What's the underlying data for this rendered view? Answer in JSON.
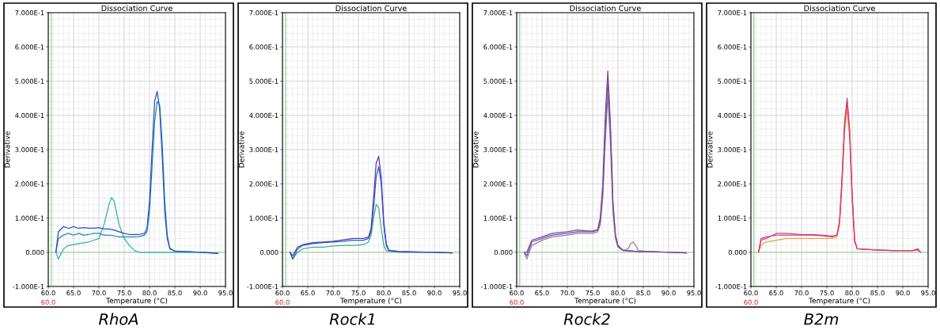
{
  "chart_data": [
    {
      "type": "line",
      "title": "Dissociation Curve",
      "subtitle": "RhoA",
      "xlabel": "Temperature (°C)",
      "ylabel": "Derivative",
      "xlim": [
        60,
        95
      ],
      "ylim": [
        -0.1,
        0.7
      ],
      "xticks": [
        {
          "value": 60,
          "label": "60.0"
        },
        {
          "value": 65,
          "label": "65.0"
        },
        {
          "value": 70,
          "label": "70.0"
        },
        {
          "value": 75,
          "label": "75.0"
        },
        {
          "value": 80,
          "label": "80.0"
        },
        {
          "value": 85,
          "label": "85.0"
        },
        {
          "value": 90,
          "label": "90.0"
        },
        {
          "value": 95,
          "label": "95.0"
        }
      ],
      "yticks": [
        {
          "value": -0.1,
          "label": "-1.000E-1"
        },
        {
          "value": 0,
          "label": "0.000"
        },
        {
          "value": 0.1,
          "label": "1.000E-1"
        },
        {
          "value": 0.2,
          "label": "2.000E-1"
        },
        {
          "value": 0.3,
          "label": "3.000E-1"
        },
        {
          "value": 0.4,
          "label": "4.000E-1"
        },
        {
          "value": 0.5,
          "label": "5.000E-1"
        },
        {
          "value": 0.6,
          "label": "6.000E-1"
        },
        {
          "value": 0.7,
          "label": "7.000E-1"
        }
      ],
      "grid": true,
      "annotations": [
        "60.0"
      ],
      "ref_lines": [
        {
          "axis": "y",
          "value": 0,
          "color": "#7fd07f"
        },
        {
          "axis": "x",
          "value": 60.6,
          "color": "#7fd07f"
        }
      ],
      "series": [
        {
          "color": "#2bb3a8",
          "x": [
            61.5,
            62,
            63,
            64,
            66,
            68,
            70,
            71,
            72,
            72.5,
            73,
            74,
            75,
            76,
            77,
            78,
            80,
            85,
            90,
            93.5
          ],
          "values": [
            0,
            -0.02,
            0.01,
            0.02,
            0.025,
            0.03,
            0.04,
            0.08,
            0.14,
            0.16,
            0.15,
            0.08,
            0.04,
            0.02,
            0.005,
            0,
            0,
            0,
            0,
            -0.003
          ]
        },
        {
          "color": "#1f8bb5",
          "x": [
            61.5,
            62,
            63,
            64,
            65,
            66,
            67,
            68,
            69,
            70,
            71,
            72,
            73,
            74,
            75,
            76,
            77,
            78,
            79,
            79.5,
            80,
            80.5,
            81,
            81.5,
            82,
            82.5,
            83,
            83.5,
            84,
            85,
            87,
            90,
            93.5
          ],
          "values": [
            0,
            0.04,
            0.05,
            0.055,
            0.05,
            0.055,
            0.05,
            0.052,
            0.055,
            0.055,
            0.05,
            0.05,
            0.048,
            0.045,
            0.045,
            0.045,
            0.045,
            0.046,
            0.05,
            0.06,
            0.12,
            0.25,
            0.38,
            0.44,
            0.43,
            0.32,
            0.15,
            0.05,
            0.012,
            0.003,
            0.002,
            0,
            -0.003
          ]
        },
        {
          "color": "#2a4fc0",
          "x": [
            61.5,
            62,
            63,
            64,
            65,
            66,
            67,
            68,
            69,
            70,
            71,
            72,
            73,
            74,
            75,
            76,
            77,
            78,
            79,
            79.5,
            80,
            80.5,
            81,
            81.5,
            82,
            82.5,
            83,
            83.5,
            84,
            85,
            87,
            90,
            93.5
          ],
          "values": [
            0,
            0.06,
            0.075,
            0.07,
            0.075,
            0.07,
            0.072,
            0.07,
            0.07,
            0.072,
            0.068,
            0.068,
            0.065,
            0.06,
            0.055,
            0.052,
            0.052,
            0.052,
            0.055,
            0.07,
            0.15,
            0.3,
            0.44,
            0.47,
            0.42,
            0.28,
            0.12,
            0.04,
            0.01,
            0.003,
            0.002,
            0,
            -0.003
          ]
        }
      ]
    },
    {
      "type": "line",
      "title": "Dissociation Curve",
      "subtitle": "Rock1",
      "xlabel": "Temperature (°C)",
      "ylabel": "Derivative",
      "xlim": [
        60,
        95
      ],
      "ylim": [
        -0.1,
        0.7
      ],
      "xticks": [
        {
          "value": 60,
          "label": "60.0"
        },
        {
          "value": 65,
          "label": "65.0"
        },
        {
          "value": 70,
          "label": "70.0"
        },
        {
          "value": 75,
          "label": "75.0"
        },
        {
          "value": 80,
          "label": "80.0"
        },
        {
          "value": 85,
          "label": "85.0"
        },
        {
          "value": 90,
          "label": "90.0"
        },
        {
          "value": 95,
          "label": "95.0"
        }
      ],
      "yticks": [
        {
          "value": -0.1,
          "label": "-1.000E-1"
        },
        {
          "value": 0,
          "label": "0.000"
        },
        {
          "value": 0.1,
          "label": "1.000E-1"
        },
        {
          "value": 0.2,
          "label": "2.000E-1"
        },
        {
          "value": 0.3,
          "label": "3.000E-1"
        },
        {
          "value": 0.4,
          "label": "4.000E-1"
        },
        {
          "value": 0.5,
          "label": "5.000E-1"
        },
        {
          "value": 0.6,
          "label": "6.000E-1"
        },
        {
          "value": 0.7,
          "label": "7.000E-1"
        }
      ],
      "grid": true,
      "annotations": [
        "60.0"
      ],
      "ref_lines": [
        {
          "axis": "y",
          "value": 0,
          "color": "#7fd07f"
        },
        {
          "axis": "x",
          "value": 60.6,
          "color": "#7fd07f"
        }
      ],
      "series": [
        {
          "color": "#3fae8f",
          "x": [
            61.5,
            62,
            63,
            64,
            66,
            68,
            70,
            72,
            74,
            76,
            77,
            77.5,
            78,
            78.5,
            79,
            79.5,
            80,
            80.5,
            81,
            83,
            86,
            90,
            93.5
          ],
          "values": [
            0,
            -0.02,
            0,
            0.01,
            0.015,
            0.015,
            0.018,
            0.02,
            0.02,
            0.022,
            0.03,
            0.05,
            0.1,
            0.14,
            0.13,
            0.07,
            0.02,
            0.005,
            0.002,
            0,
            0,
            0,
            -0.002
          ]
        },
        {
          "color": "#2c5fb8",
          "x": [
            61.5,
            62,
            63,
            64,
            66,
            68,
            70,
            72,
            74,
            76,
            77,
            77.5,
            78,
            78.5,
            79,
            79.5,
            80,
            80.5,
            81,
            83,
            86,
            90,
            93.5
          ],
          "values": [
            0,
            -0.02,
            0.01,
            0.02,
            0.025,
            0.028,
            0.03,
            0.032,
            0.035,
            0.035,
            0.04,
            0.06,
            0.13,
            0.22,
            0.25,
            0.2,
            0.08,
            0.02,
            0.005,
            0.002,
            0.001,
            0,
            -0.002
          ]
        },
        {
          "color": "#4b3cc4",
          "x": [
            61.5,
            62,
            63,
            64,
            66,
            68,
            70,
            72,
            74,
            76,
            77,
            77.5,
            78,
            78.5,
            79,
            79.5,
            80,
            80.5,
            81,
            83,
            86,
            90,
            93.5
          ],
          "values": [
            0,
            -0.01,
            0.015,
            0.022,
            0.028,
            0.03,
            0.032,
            0.036,
            0.04,
            0.04,
            0.045,
            0.07,
            0.16,
            0.26,
            0.28,
            0.22,
            0.09,
            0.025,
            0.006,
            0.002,
            0.001,
            0,
            -0.002
          ]
        }
      ]
    },
    {
      "type": "line",
      "title": "Dissociation Curve",
      "subtitle": "Rock2",
      "xlabel": "Temperature (°C)",
      "ylabel": "Derivative",
      "xlim": [
        60,
        95
      ],
      "ylim": [
        -0.1,
        0.7
      ],
      "xticks": [
        {
          "value": 60,
          "label": "60.0"
        },
        {
          "value": 65,
          "label": "65.0"
        },
        {
          "value": 70,
          "label": "70.0"
        },
        {
          "value": 75,
          "label": "75.0"
        },
        {
          "value": 80,
          "label": "80.0"
        },
        {
          "value": 85,
          "label": "85.0"
        },
        {
          "value": 90,
          "label": "90.0"
        },
        {
          "value": 95,
          "label": "95.0"
        }
      ],
      "yticks": [
        {
          "value": -0.1,
          "label": "-1.000E-1"
        },
        {
          "value": 0,
          "label": "0.000"
        },
        {
          "value": 0.1,
          "label": "1.000E-1"
        },
        {
          "value": 0.2,
          "label": "2.000E-1"
        },
        {
          "value": 0.3,
          "label": "3.000E-1"
        },
        {
          "value": 0.4,
          "label": "4.000E-1"
        },
        {
          "value": 0.5,
          "label": "5.000E-1"
        },
        {
          "value": 0.6,
          "label": "6.000E-1"
        },
        {
          "value": 0.7,
          "label": "7.000E-1"
        }
      ],
      "grid": true,
      "annotations": [
        "60.0"
      ],
      "ref_lines": [
        {
          "axis": "y",
          "value": 0,
          "color": "#7fd07f"
        },
        {
          "axis": "x",
          "value": 60.6,
          "color": "#7fd07f"
        }
      ],
      "series": [
        {
          "color": "#8a8a8a",
          "x": [
            61.5,
            62,
            63,
            65,
            67,
            70,
            72,
            74,
            75,
            76,
            76.5,
            77,
            77.5,
            78,
            78.5,
            79,
            79.5,
            80,
            81,
            82,
            82.5,
            83,
            83.5,
            84,
            86,
            90,
            93.5
          ],
          "values": [
            0,
            -0.02,
            0.02,
            0.035,
            0.045,
            0.05,
            0.055,
            0.055,
            0.055,
            0.06,
            0.08,
            0.16,
            0.32,
            0.46,
            0.32,
            0.12,
            0.04,
            0.015,
            0.005,
            0.01,
            0.025,
            0.03,
            0.02,
            0.005,
            0.002,
            0,
            -0.002
          ]
        },
        {
          "color": "#6a4fb5",
          "x": [
            61.5,
            62,
            63,
            65,
            67,
            70,
            72,
            74,
            75,
            76,
            76.5,
            77,
            77.5,
            78,
            78.5,
            79,
            79.5,
            80,
            81,
            84,
            86,
            90,
            93.5
          ],
          "values": [
            0,
            -0.01,
            0.03,
            0.04,
            0.05,
            0.055,
            0.06,
            0.06,
            0.06,
            0.065,
            0.09,
            0.18,
            0.36,
            0.5,
            0.36,
            0.14,
            0.05,
            0.018,
            0.005,
            0.002,
            0.002,
            0,
            -0.002
          ]
        },
        {
          "color": "#8a3f9e",
          "x": [
            61.5,
            62,
            63,
            65,
            67,
            70,
            72,
            74,
            75,
            76,
            76.5,
            77,
            77.5,
            78,
            78.5,
            79,
            79.5,
            80,
            81,
            84,
            86,
            90,
            93.5
          ],
          "values": [
            0,
            0,
            0.035,
            0.045,
            0.055,
            0.06,
            0.065,
            0.062,
            0.062,
            0.066,
            0.1,
            0.2,
            0.4,
            0.53,
            0.38,
            0.15,
            0.05,
            0.02,
            0.006,
            0.002,
            0.002,
            0,
            -0.002
          ]
        }
      ]
    },
    {
      "type": "line",
      "title": "Dissociation Curve",
      "subtitle": "B2m",
      "xlabel": "Temperature (°C)",
      "ylabel": "Derivative",
      "xlim": [
        60,
        95
      ],
      "ylim": [
        -0.1,
        0.7
      ],
      "xticks": [
        {
          "value": 60,
          "label": "60.0"
        },
        {
          "value": 65,
          "label": "65.0"
        },
        {
          "value": 70,
          "label": "70.0"
        },
        {
          "value": 75,
          "label": "75.0"
        },
        {
          "value": 80,
          "label": "80.0"
        },
        {
          "value": 85,
          "label": "85.0"
        },
        {
          "value": 90,
          "label": "90.0"
        },
        {
          "value": 95,
          "label": "95.0"
        }
      ],
      "yticks": [
        {
          "value": -0.1,
          "label": "-1.000E-1"
        },
        {
          "value": 0,
          "label": "0.000"
        },
        {
          "value": 0.1,
          "label": "1.000E-1"
        },
        {
          "value": 0.2,
          "label": "2.000E-1"
        },
        {
          "value": 0.3,
          "label": "3.000E-1"
        },
        {
          "value": 0.4,
          "label": "4.000E-1"
        },
        {
          "value": 0.5,
          "label": "5.000E-1"
        },
        {
          "value": 0.6,
          "label": "6.000E-1"
        },
        {
          "value": 0.7,
          "label": "7.000E-1"
        }
      ],
      "grid": true,
      "annotations": [
        "60.0"
      ],
      "ref_lines": [
        {
          "axis": "y",
          "value": 0,
          "color": "#7fd07f"
        },
        {
          "axis": "x",
          "value": 60.6,
          "color": "#7fd07f"
        }
      ],
      "series": [
        {
          "color": "#f0a040",
          "x": [
            61.5,
            62,
            63,
            65,
            67,
            70,
            72,
            74,
            76,
            77,
            77.5,
            78,
            78.5,
            79,
            79.5,
            80,
            80.5,
            81,
            84,
            88,
            92,
            93,
            93.5
          ],
          "values": [
            0,
            0.02,
            0.03,
            0.035,
            0.04,
            0.04,
            0.04,
            0.04,
            0.04,
            0.045,
            0.08,
            0.2,
            0.35,
            0.42,
            0.33,
            0.15,
            0.03,
            0.01,
            0.007,
            0.005,
            0.005,
            0.006,
            0
          ]
        },
        {
          "color": "#c2409a",
          "x": [
            61.5,
            62,
            63,
            65,
            67,
            70,
            72,
            74,
            76,
            77,
            77.5,
            78,
            78.5,
            79,
            79.5,
            80,
            80.5,
            81,
            84,
            88,
            92,
            93,
            93.5
          ],
          "values": [
            0,
            0.04,
            0.045,
            0.05,
            0.05,
            0.05,
            0.05,
            0.048,
            0.045,
            0.05,
            0.09,
            0.22,
            0.38,
            0.45,
            0.36,
            0.17,
            0.035,
            0.01,
            0.007,
            0.005,
            0.005,
            0.008,
            0
          ]
        },
        {
          "color": "#e03c6a",
          "x": [
            61.5,
            62,
            63,
            65,
            67,
            70,
            72,
            74,
            76,
            77,
            77.5,
            78,
            78.5,
            79,
            79.5,
            80,
            80.5,
            81,
            84,
            88,
            92,
            93,
            93.5
          ],
          "values": [
            0,
            0.035,
            0.04,
            0.055,
            0.055,
            0.052,
            0.052,
            0.05,
            0.047,
            0.05,
            0.085,
            0.21,
            0.37,
            0.44,
            0.35,
            0.16,
            0.03,
            0.01,
            0.007,
            0.005,
            0.005,
            0.01,
            0
          ]
        }
      ]
    }
  ]
}
